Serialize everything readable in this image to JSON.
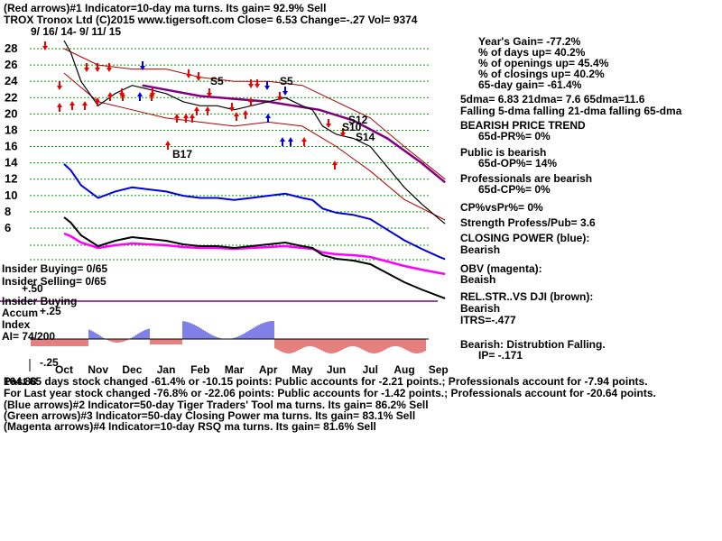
{
  "header": {
    "line1": "(Red arrows)#1 Indicator=10-day ma turns. Its gain= 92.9% Sell",
    "line2": "TROX  Tronox Ltd  (C)2015 www.tigersoft.com     Close=  6.53  Change=-.27 Vol=  9374",
    "date_range": "9/ 16/ 14-  9/ 11/ 15"
  },
  "right_panel": [
    "Year's Gain= -77.2%",
    "% of days up= 40.2%",
    "% of openings up= 45.4%",
    "% of closings up= 40.2%",
    "65-day gain= -61.4%",
    "5dma= 6.83 21dma= 7.6 65dma=11.6",
    "Falling 5-dma falling 21-dma falling 65-dma",
    "BEARISH PRICE TREND",
    "65d-PR%= 0%",
    "Public is bearish",
    "65d-OP%= 14%",
    "Professionals are bearish",
    "65d-CP%= 0%",
    "CP%vsPr%=  0%",
    "Strength Profess/Pub= 3.6",
    "CLOSING POWER (blue):",
    "Bearish",
    "OBV (magenta):",
    "Beaish",
    "REL.STR..VS DJI (brown):",
    "Bearish",
    "ITRS=-.477",
    "Bearish: Distrubtion Falling.",
    "IP= -.171"
  ],
  "left_labels": {
    "insider_buying": "Insider Buying= 0/65",
    "insider_selling": "Insider Selling= 0/65",
    "plus50": "+.50",
    "insider_buying2": "Insider Buying",
    "accum": "Accum",
    "plus25": "+.25",
    "index": "Index",
    "ai": "AI= 74/200",
    "minus25": "-.25"
  },
  "signals": [
    "S5",
    "S5",
    "S12",
    "S10",
    "S14",
    "B17"
  ],
  "footer": {
    "line1": "Past 65 days stock changed -61.4% or -10.15 points:  Public accounts for -2.21 points.;  Professionals account for -7.94 points.",
    "line1_overlap": "164.88",
    "line2": "For Last year stock changed -76.8% or -22.06 points:  Public accounts for -1.42 points.;  Professionals account for -20.64 points.",
    "line3": "(Blue arrows)#2 Indicator=50-day Tiger Traders' Tool ma turns. Its gain= 86.2% Sell",
    "line4": "(Green arrows)#3 Indicator=50-day Closing Power ma turns. Its gain= 83.1% Sell",
    "line5": "(Magenta arrows)#4 Indicator=10-day RSQ ma turns. Its gain= 81.6% Sell"
  },
  "colors": {
    "price": "#000000",
    "grid": "#00a000",
    "band": "#b00000",
    "ma": "#800080",
    "closing_power": "#0000dd",
    "obv": "#ff00ff",
    "rel_strength": "#000000",
    "accum_pos": "#0000cc",
    "accum_neg": "#cc0000",
    "red_arrow": "#ee0000",
    "blue_arrow": "#0000dd"
  },
  "chart_data": {
    "type": "line",
    "title": "TROX  Tronox Ltd",
    "x_tick_labels": [
      "Oct",
      "Nov",
      "Dec",
      "Jan",
      "Feb",
      "Mar",
      "Apr",
      "May",
      "Jun",
      "Jul",
      "Aug",
      "Sep"
    ],
    "y_tick_labels": [
      "28",
      "26",
      "24",
      "22",
      "20",
      "18",
      "16",
      "14",
      "12",
      "10",
      "8",
      "6"
    ],
    "ylim": [
      6,
      28
    ],
    "grid": true,
    "series": [
      {
        "role": "price",
        "x": [
          0,
          0.2,
          0.5,
          1,
          1.5,
          2,
          2.5,
          3,
          3.5,
          4,
          4.5,
          5,
          5.5,
          6,
          6.5,
          7,
          7.3,
          7.6,
          8,
          8.5,
          9,
          9.5,
          10,
          10.5,
          11,
          11.2
        ],
        "values": [
          29,
          27.5,
          24,
          21,
          22.5,
          23.5,
          23,
          22.5,
          21.5,
          21,
          21,
          20.5,
          21,
          21.5,
          22,
          21,
          20.5,
          18.5,
          17.5,
          17,
          16,
          13.5,
          11,
          9,
          7.2,
          6.53
        ]
      }
    ],
    "moving_average_65d": {
      "x": [
        2.3,
        4,
        6,
        7.5,
        8.5,
        9.5,
        10.5,
        11.2
      ],
      "values": [
        23.5,
        22.2,
        21.5,
        20.5,
        19.2,
        17,
        14,
        11.6
      ]
    },
    "bands": {
      "x": [
        0,
        1,
        2,
        3,
        4,
        5,
        6,
        7,
        8,
        9,
        10,
        11.2
      ],
      "upper": [
        28,
        26,
        25.5,
        25.5,
        24.5,
        24,
        24,
        23.5,
        21.5,
        19.5,
        16,
        12
      ],
      "lower": [
        25,
        21.5,
        20.5,
        19.5,
        19,
        18.5,
        19,
        18.5,
        16,
        13,
        9.5,
        7
      ]
    },
    "indicator_panel_values": {
      "accum_index_ai": 74,
      "accum_index_ai_max": 200,
      "ip": -0.171
    }
  }
}
